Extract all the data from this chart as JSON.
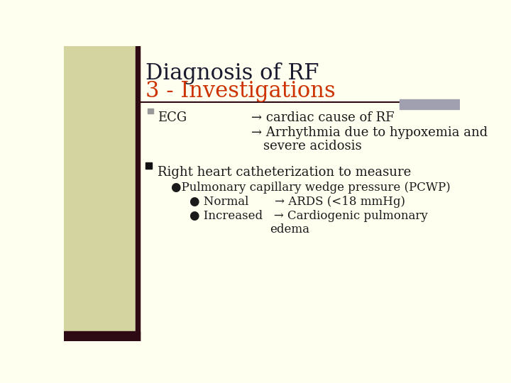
{
  "bg_color": "#fffff0",
  "left_panel_color": "#d4d4a0",
  "left_bar_color": "#2d0a14",
  "title_line1": "Diagnosis of RF",
  "title_line1_color": "#1a1a2e",
  "title_line2": "3 - Investigations",
  "title_line2_color": "#cc3300",
  "separator_color": "#2d0a14",
  "right_bar_color": "#a0a0b0",
  "bullet1_marker_color": "#999999",
  "bullet1_label": "ECG",
  "bullet1_text1": "→ cardiac cause of RF",
  "bullet1_text2": "→ Arrhythmia due to hypoxemia and",
  "bullet1_text3": "severe acidosis",
  "bullet2_marker_color": "#111111",
  "bullet2_label": "Right heart catheterization to measure",
  "sub1_label": "●Pulmonary capillary wedge pressure (PCWP)",
  "sub2_label": "● Normal       → ARDS (<18 mmHg)",
  "sub3_label": "● Increased   → Cardiogenic pulmonary",
  "sub4_label": "edema",
  "text_color": "#1a1a1a",
  "font_family": "DejaVu Serif",
  "title_fontsize": 22,
  "body_fontsize": 13,
  "sub_fontsize": 12
}
